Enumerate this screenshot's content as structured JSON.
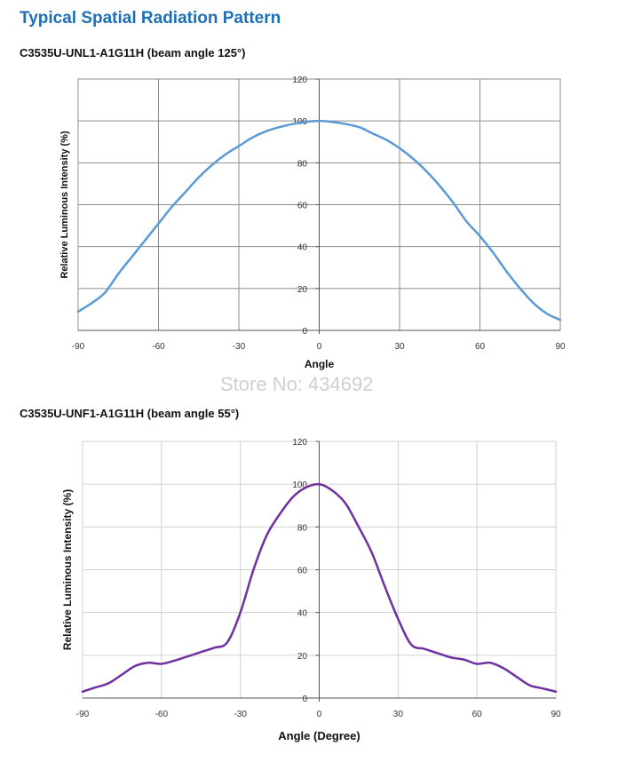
{
  "page": {
    "heading": "Typical Spatial Radiation Pattern",
    "watermark": "Store No: 434692"
  },
  "chart_data": [
    {
      "type": "line",
      "title": "C3535U-UNL1-A1G11H (beam angle 125°)",
      "xlabel": "Angle",
      "ylabel": "Relative Luminous Intensity (%)",
      "xlim": [
        -90,
        90
      ],
      "ylim": [
        0,
        120
      ],
      "xticks": [
        -90,
        -60,
        -30,
        0,
        30,
        60,
        90
      ],
      "yticks": [
        0,
        20,
        40,
        60,
        80,
        100,
        120
      ],
      "grid": true,
      "color": "#5b9bd5",
      "series": [
        {
          "x": [
            -90,
            -85,
            -80,
            -75,
            -70,
            -65,
            -60,
            -55,
            -50,
            -45,
            -40,
            -35,
            -30,
            -25,
            -20,
            -15,
            -10,
            -5,
            0,
            5,
            10,
            15,
            20,
            25,
            30,
            35,
            40,
            45,
            50,
            55,
            60,
            65,
            70,
            75,
            80,
            85,
            90
          ],
          "y": [
            9,
            13,
            18,
            27,
            35,
            43,
            51,
            59,
            66,
            73,
            79,
            84,
            88,
            92,
            95,
            97,
            98.5,
            99.5,
            100,
            99.5,
            98.5,
            97,
            94,
            91,
            87,
            82,
            76,
            69,
            61,
            52,
            45,
            37,
            28,
            20,
            13,
            8,
            5
          ]
        }
      ]
    },
    {
      "type": "line",
      "title": "C3535U-UNF1-A1G11H (beam angle 55°)",
      "xlabel": "Angle (Degree)",
      "ylabel": "Relative Luminous Intensity (%)",
      "xlim": [
        -90,
        90
      ],
      "ylim": [
        0,
        120
      ],
      "xticks": [
        -90,
        -60,
        -30,
        0,
        30,
        60,
        90
      ],
      "yticks": [
        0,
        20,
        40,
        60,
        80,
        100,
        120
      ],
      "grid": true,
      "color": "#7030a0",
      "series": [
        {
          "x": [
            -90,
            -85,
            -80,
            -75,
            -70,
            -65,
            -60,
            -55,
            -50,
            -45,
            -40,
            -35,
            -30,
            -25,
            -20,
            -15,
            -10,
            -5,
            0,
            5,
            10,
            15,
            20,
            25,
            30,
            35,
            40,
            45,
            50,
            55,
            60,
            65,
            70,
            75,
            80,
            85,
            90
          ],
          "y": [
            3,
            5,
            7,
            11,
            15,
            16.5,
            16,
            17.5,
            19.5,
            21.5,
            23.5,
            26,
            40,
            60,
            76,
            86,
            94,
            98.5,
            100,
            97,
            91,
            80,
            68,
            52,
            37,
            25,
            23,
            21,
            19,
            18,
            16,
            16.5,
            14,
            10,
            6,
            4.5,
            3
          ]
        }
      ]
    }
  ]
}
